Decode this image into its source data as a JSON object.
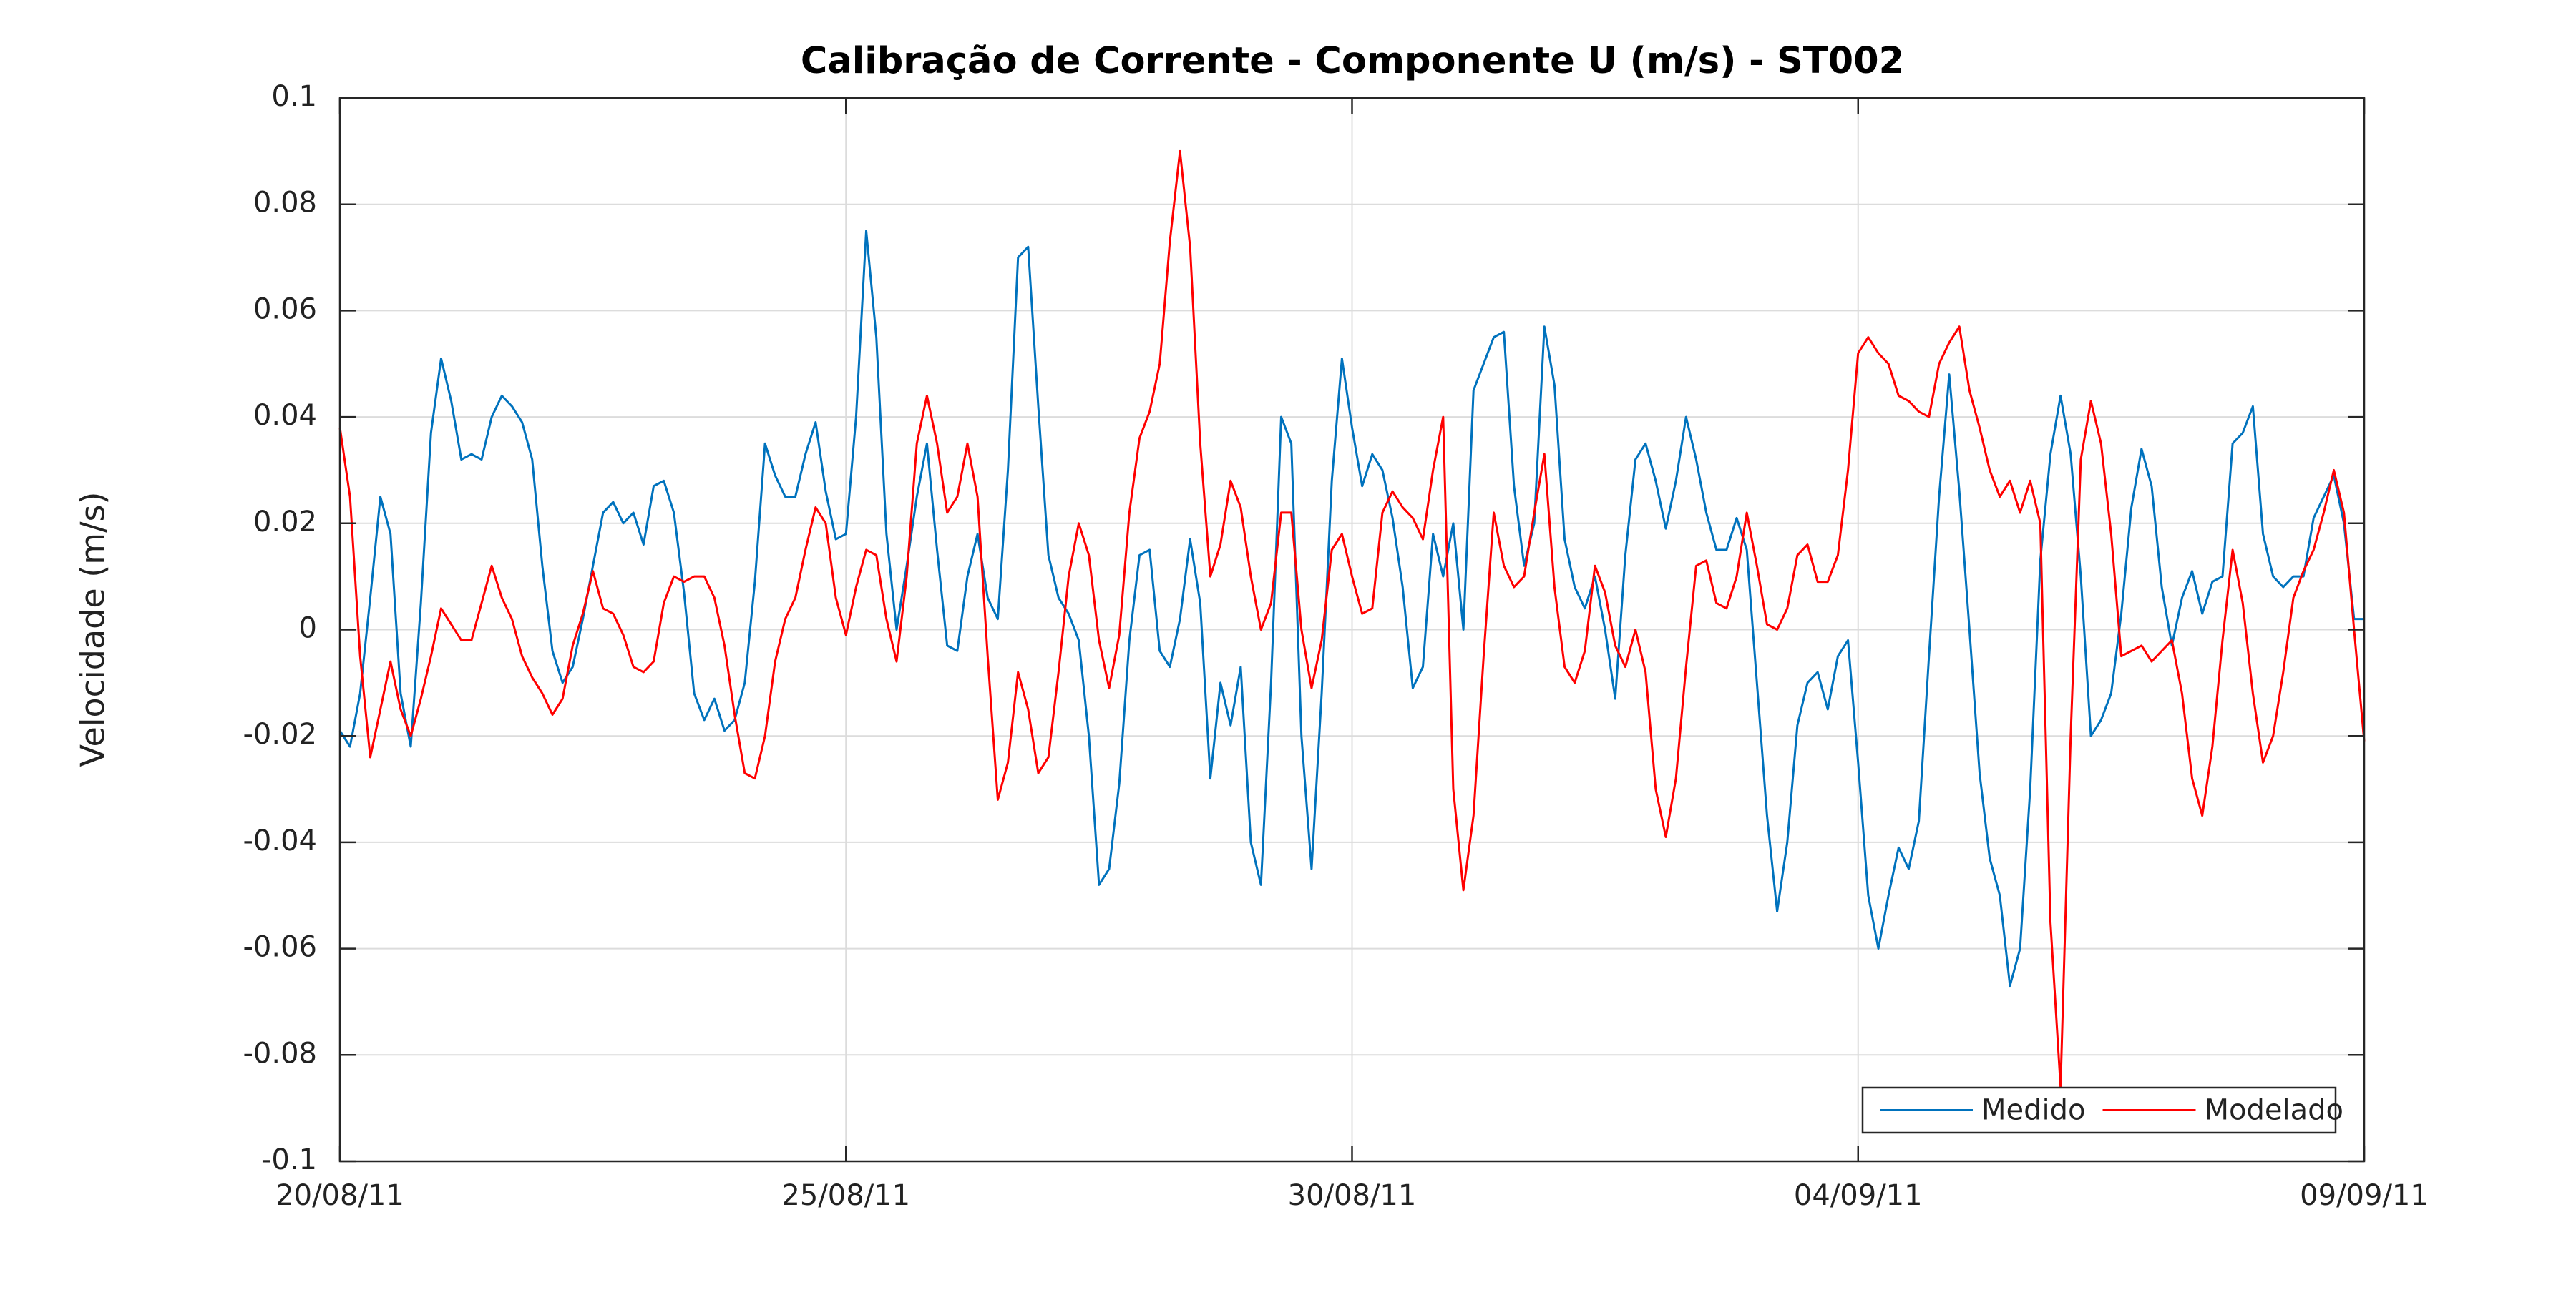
{
  "chart_data": {
    "type": "line",
    "title": "Calibração de Corrente - Componente U (m/s) - ST002",
    "ylabel": "Velocidade (m/s)",
    "xlim": [
      0,
      20
    ],
    "xticks": [
      {
        "value": 0,
        "label": "20/08/11"
      },
      {
        "value": 5,
        "label": "25/08/11"
      },
      {
        "value": 10,
        "label": "30/08/11"
      },
      {
        "value": 15,
        "label": "04/09/11"
      },
      {
        "value": 20,
        "label": "09/09/11"
      }
    ],
    "ylim": [
      -0.1,
      0.1
    ],
    "yticks": [
      -0.1,
      -0.08,
      -0.06,
      -0.04,
      -0.02,
      0,
      0.02,
      0.04,
      0.06,
      0.08,
      0.1
    ],
    "grid": true,
    "legend": "lower right",
    "x": [
      0,
      0.1,
      0.2,
      0.3,
      0.4,
      0.5,
      0.6,
      0.7,
      0.8,
      0.9,
      1,
      1.1,
      1.2,
      1.3,
      1.4,
      1.5,
      1.6,
      1.7,
      1.8,
      1.9,
      2,
      2.1,
      2.2,
      2.3,
      2.4,
      2.5,
      2.6,
      2.7,
      2.8,
      2.9,
      3,
      3.1,
      3.2,
      3.3,
      3.4,
      3.5,
      3.6,
      3.7,
      3.8,
      3.9,
      4,
      4.1,
      4.2,
      4.3,
      4.4,
      4.5,
      4.6,
      4.7,
      4.8,
      4.9,
      5,
      5.1,
      5.2,
      5.3,
      5.4,
      5.5,
      5.6,
      5.7,
      5.8,
      5.9,
      6,
      6.1,
      6.2,
      6.3,
      6.4,
      6.5,
      6.6,
      6.7,
      6.8,
      6.9,
      7,
      7.1,
      7.2,
      7.3,
      7.4,
      7.5,
      7.6,
      7.7,
      7.8,
      7.9,
      8,
      8.1,
      8.2,
      8.3,
      8.4,
      8.5,
      8.6,
      8.7,
      8.8,
      8.9,
      9,
      9.1,
      9.2,
      9.3,
      9.4,
      9.5,
      9.6,
      9.7,
      9.8,
      9.9,
      10,
      10.1,
      10.2,
      10.3,
      10.4,
      10.5,
      10.6,
      10.7,
      10.8,
      10.9,
      11,
      11.1,
      11.2,
      11.3,
      11.4,
      11.5,
      11.6,
      11.7,
      11.8,
      11.9,
      12,
      12.1,
      12.2,
      12.3,
      12.4,
      12.5,
      12.6,
      12.7,
      12.8,
      12.9,
      13,
      13.1,
      13.2,
      13.3,
      13.4,
      13.5,
      13.6,
      13.7,
      13.8,
      13.9,
      14,
      14.1,
      14.2,
      14.3,
      14.4,
      14.5,
      14.6,
      14.7,
      14.8,
      14.9,
      15,
      15.1,
      15.2,
      15.3,
      15.4,
      15.5,
      15.6,
      15.7,
      15.8,
      15.9,
      16,
      16.1,
      16.2,
      16.3,
      16.4,
      16.5,
      16.6,
      16.7,
      16.8,
      16.9,
      17,
      17.1,
      17.2,
      17.3,
      17.4,
      17.5,
      17.6,
      17.7,
      17.8,
      17.9,
      18,
      18.1,
      18.2,
      18.3,
      18.4,
      18.5,
      18.6,
      18.7,
      18.8,
      18.9,
      19,
      19.1,
      19.2,
      19.3,
      19.4,
      19.5,
      19.6,
      19.7,
      19.8,
      19.9,
      20
    ],
    "series": [
      {
        "name": "Medido",
        "color": "#0072bd",
        "values": [
          -0.019,
          -0.022,
          -0.012,
          0.006,
          0.025,
          0.018,
          -0.012,
          -0.022,
          0.005,
          0.037,
          0.051,
          0.043,
          0.032,
          0.033,
          0.032,
          0.04,
          0.044,
          0.042,
          0.039,
          0.032,
          0.012,
          -0.004,
          -0.01,
          -0.007,
          0.002,
          0.012,
          0.022,
          0.024,
          0.02,
          0.022,
          0.016,
          0.027,
          0.028,
          0.022,
          0.007,
          -0.012,
          -0.017,
          -0.013,
          -0.019,
          -0.017,
          -0.01,
          0.009,
          0.035,
          0.029,
          0.025,
          0.025,
          0.033,
          0.039,
          0.026,
          0.017,
          0.018,
          0.04,
          0.075,
          0.055,
          0.018,
          0,
          0.012,
          0.025,
          0.035,
          0.015,
          -0.003,
          -0.004,
          0.01,
          0.018,
          0.006,
          0.002,
          0.03,
          0.07,
          0.072,
          0.042,
          0.014,
          0.006,
          0.003,
          -0.002,
          -0.02,
          -0.048,
          -0.045,
          -0.029,
          -0.002,
          0.014,
          0.015,
          -0.004,
          -0.007,
          0.002,
          0.017,
          0.005,
          -0.028,
          -0.01,
          -0.018,
          -0.007,
          -0.04,
          -0.048,
          -0.01,
          0.04,
          0.035,
          -0.02,
          -0.045,
          -0.012,
          0.028,
          0.051,
          0.038,
          0.027,
          0.033,
          0.03,
          0.021,
          0.008,
          -0.011,
          -0.007,
          0.018,
          0.01,
          0.02,
          0,
          0.045,
          0.05,
          0.055,
          0.056,
          0.027,
          0.012,
          0.02,
          0.057,
          0.046,
          0.017,
          0.008,
          0.004,
          0.01,
          0,
          -0.013,
          0.014,
          0.032,
          0.035,
          0.028,
          0.019,
          0.028,
          0.04,
          0.032,
          0.022,
          0.015,
          0.015,
          0.021,
          0.015,
          -0.01,
          -0.035,
          -0.053,
          -0.04,
          -0.018,
          -0.01,
          -0.008,
          -0.015,
          -0.005,
          -0.002,
          -0.025,
          -0.05,
          -0.06,
          -0.05,
          -0.041,
          -0.045,
          -0.036,
          -0.005,
          0.025,
          0.048,
          0.026,
          0,
          -0.027,
          -0.043,
          -0.05,
          -0.067,
          -0.06,
          -0.03,
          0.013,
          0.033,
          0.044,
          0.033,
          0.01,
          -0.02,
          -0.017,
          -0.012,
          0.003,
          0.023,
          0.034,
          0.027,
          0.008,
          -0.003,
          0.006,
          0.011,
          0.003,
          0.009,
          0.01,
          0.035,
          0.037,
          0.042,
          0.018,
          0.01,
          0.008,
          0.01,
          0.01,
          0.021,
          0.025,
          0.029,
          0.02,
          0.002,
          0.002
        ]
      },
      {
        "name": "Modelado",
        "color": "#ff0000",
        "values": [
          0.038,
          0.025,
          -0.005,
          -0.024,
          -0.015,
          -0.006,
          -0.015,
          -0.02,
          -0.013,
          -0.005,
          0.004,
          0.001,
          -0.002,
          -0.002,
          0.005,
          0.012,
          0.006,
          0.002,
          -0.005,
          -0.009,
          -0.012,
          -0.016,
          -0.013,
          -0.003,
          0.003,
          0.011,
          0.004,
          0.003,
          -0.001,
          -0.007,
          -0.008,
          -0.006,
          0.005,
          0.01,
          0.009,
          0.01,
          0.01,
          0.006,
          -0.003,
          -0.016,
          -0.027,
          -0.028,
          -0.02,
          -0.006,
          0.002,
          0.006,
          0.015,
          0.023,
          0.02,
          0.006,
          -0.001,
          0.008,
          0.015,
          0.014,
          0.002,
          -0.006,
          0.01,
          0.035,
          0.044,
          0.035,
          0.022,
          0.025,
          0.035,
          0.025,
          -0.005,
          -0.032,
          -0.025,
          -0.008,
          -0.015,
          -0.027,
          -0.024,
          -0.008,
          0.01,
          0.02,
          0.014,
          -0.002,
          -0.011,
          -0.001,
          0.022,
          0.036,
          0.041,
          0.05,
          0.073,
          0.09,
          0.072,
          0.035,
          0.01,
          0.016,
          0.028,
          0.023,
          0.01,
          0,
          0.005,
          0.022,
          0.022,
          0,
          -0.011,
          -0.002,
          0.015,
          0.018,
          0.01,
          0.003,
          0.004,
          0.022,
          0.026,
          0.023,
          0.021,
          0.017,
          0.03,
          0.04,
          -0.03,
          -0.049,
          -0.035,
          -0.005,
          0.022,
          0.012,
          0.008,
          0.01,
          0.022,
          0.033,
          0.008,
          -0.007,
          -0.01,
          -0.004,
          0.012,
          0.007,
          -0.003,
          -0.007,
          0,
          -0.008,
          -0.03,
          -0.039,
          -0.028,
          -0.007,
          0.012,
          0.013,
          0.005,
          0.004,
          0.01,
          0.022,
          0.012,
          0.001,
          0,
          0.004,
          0.014,
          0.016,
          0.009,
          0.009,
          0.014,
          0.03,
          0.052,
          0.055,
          0.052,
          0.05,
          0.044,
          0.043,
          0.041,
          0.04,
          0.05,
          0.054,
          0.057,
          0.045,
          0.038,
          0.03,
          0.025,
          0.028,
          0.022,
          0.028,
          0.02,
          -0.055,
          -0.086,
          -0.02,
          0.032,
          0.043,
          0.035,
          0.018,
          -0.005,
          -0.004,
          -0.003,
          -0.006,
          -0.004,
          -0.002,
          -0.012,
          -0.028,
          -0.035,
          -0.022,
          -0.002,
          0.015,
          0.005,
          -0.012,
          -0.025,
          -0.02,
          -0.008,
          0.006,
          0.011,
          0.015,
          0.022,
          0.03,
          0.022,
          0,
          -0.021
        ]
      }
    ]
  }
}
